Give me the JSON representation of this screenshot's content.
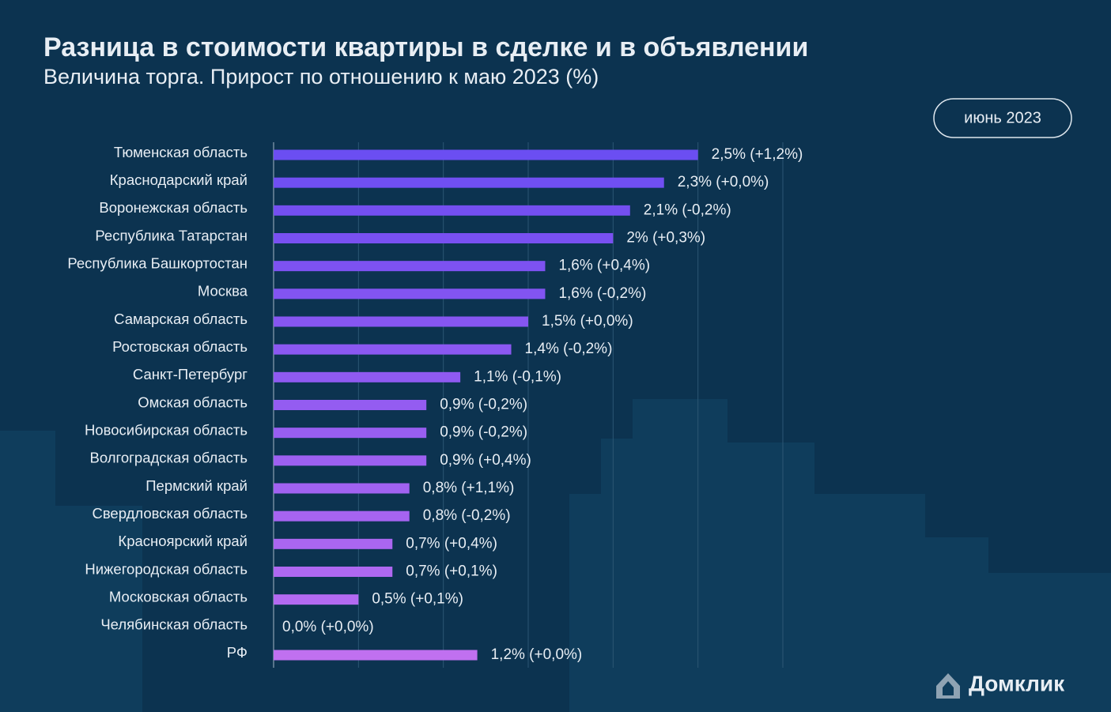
{
  "chart_data": {
    "type": "barh",
    "title": "Разница в стоимости квартиры в сделке и в объявлении",
    "subtitle": "Величина торга. Прирост по отношению к маю 2023 (%)",
    "categories": [
      "Тюменская область",
      "Краснодарский край",
      "Воронежская область",
      "Республика Татарстан",
      "Республика Башкортостан",
      "Москва",
      "Самарская область",
      "Ростовская область",
      "Санкт-Петербург",
      "Омская область",
      "Новосибирская область",
      "Волгоградская область",
      "Пермский край",
      "Свердловская область",
      "Красноярский край",
      "Нижегородская область",
      "Московская область",
      "Челябинская область",
      "РФ"
    ],
    "values": [
      2.5,
      2.3,
      2.1,
      2,
      1.6,
      1.6,
      1.5,
      1.4,
      1.1,
      0.9,
      0.9,
      0.9,
      0.8,
      0.8,
      0.7,
      0.7,
      0.5,
      0,
      1.2
    ],
    "value_labels": [
      "2,5% (+1,2%)",
      "2,3% (+0,0%)",
      "2,1% (-0,2%)",
      "2% (+0,3%)",
      "1,6% (+0,4%)",
      "1,6% (-0,2%)",
      "1,5% (+0,0%)",
      "1,4% (-0,2%)",
      "1,1% (-0,1%)",
      "0,9% (-0,2%)",
      "0,9% (-0,2%)",
      "0,9% (+0,4%)",
      "0,8% (+1,1%)",
      "0,8% (-0,2%)",
      "0,7% (+0,4%)",
      "0,7% (+0,1%)",
      "0,5% (+0,1%)",
      "0,0% (+0,0%)",
      "1,2% (+0,0%)"
    ],
    "colors": [
      "#6b4ef2",
      "#704ff2",
      "#744ff1",
      "#7950f1",
      "#7d52f1",
      "#8254f1",
      "#8656f1",
      "#8b58f1",
      "#8f5af1",
      "#945cf1",
      "#985ef1",
      "#9d60f1",
      "#a162f1",
      "#a664f1",
      "#aa66f1",
      "#af68f1",
      "#b36af1",
      "#b86cf1",
      "#c070f0"
    ],
    "xlim": [
      0,
      3
    ],
    "xticks": [
      0,
      0.5,
      1,
      1.5,
      2,
      2.5,
      3
    ],
    "grid": true
  },
  "badge": "июнь 2023",
  "logo": "Домклик"
}
